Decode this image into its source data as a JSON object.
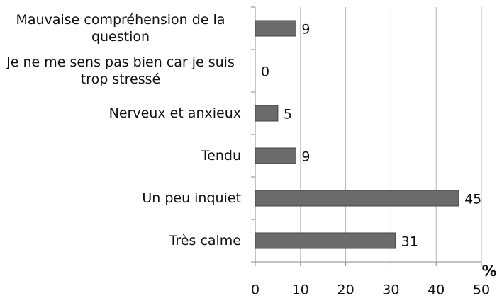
{
  "chart_data": {
    "type": "bar",
    "orientation": "horizontal",
    "categories": [
      "Mauvaise compréhension de la question",
      "Je ne me sens pas bien car je suis trop stressé",
      "Nerveux et anxieux",
      "Tendu",
      "Un peu inquiet",
      "Très calme"
    ],
    "values": [
      9,
      0,
      5,
      9,
      45,
      31
    ],
    "color": "#6b6b6b",
    "x_label": "%",
    "xlim": [
      0,
      50
    ],
    "xticks": [
      0,
      10,
      20,
      30,
      40,
      50
    ],
    "grid": true
  }
}
